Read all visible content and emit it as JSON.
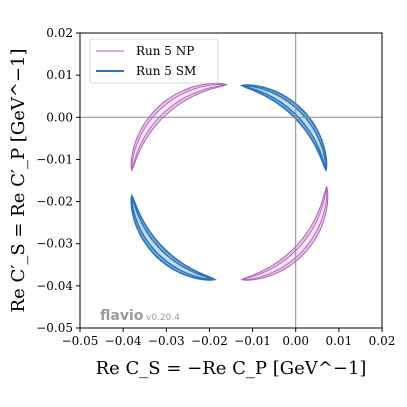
{
  "chart_data": {
    "type": "line",
    "xlabel": "Re C_S = −Re C_P [GeV^−1]",
    "ylabel": "Re C′_S = Re C′_P [GeV^−1]",
    "xlim": [
      -0.05,
      0.02
    ],
    "ylim": [
      -0.05,
      0.02
    ],
    "x_ticks": [
      "−0.05",
      "−0.04",
      "−0.03",
      "−0.02",
      "−0.01",
      "0.00",
      "0.01",
      "0.02"
    ],
    "y_ticks": [
      "0.02",
      "0.01",
      "0.00",
      "−0.01",
      "−0.02",
      "−0.03",
      "−0.04",
      "−0.05"
    ],
    "reference_lines": {
      "x": 0,
      "y": 0
    },
    "legend_position": "top-left",
    "grid": false,
    "series": [
      {
        "name": "Run 5 NP",
        "color": "#b35db6",
        "fill": "#e8c8ea",
        "center": [
          -0.0155,
          -0.0155
        ],
        "radius": 0.0227,
        "arcs": [
          [
            -0.0385,
            -0.0125,
            -0.016,
            0.0068
          ],
          [
            0.0068,
            -0.0165,
            -0.0125,
            -0.0384
          ]
        ]
      },
      {
        "name": "Run 5 SM",
        "color": "#2a73b8",
        "fill": "#7fb0da",
        "center": [
          -0.0155,
          -0.0155
        ],
        "radius": 0.0227,
        "arcs": [
          [
            -0.0125,
            0.0068,
            0.0068,
            -0.0125
          ],
          [
            -0.0384,
            -0.0187,
            -0.0188,
            -0.0383
          ]
        ]
      }
    ]
  },
  "watermark": {
    "brand": "flavio",
    "version": "v0.20.4"
  }
}
